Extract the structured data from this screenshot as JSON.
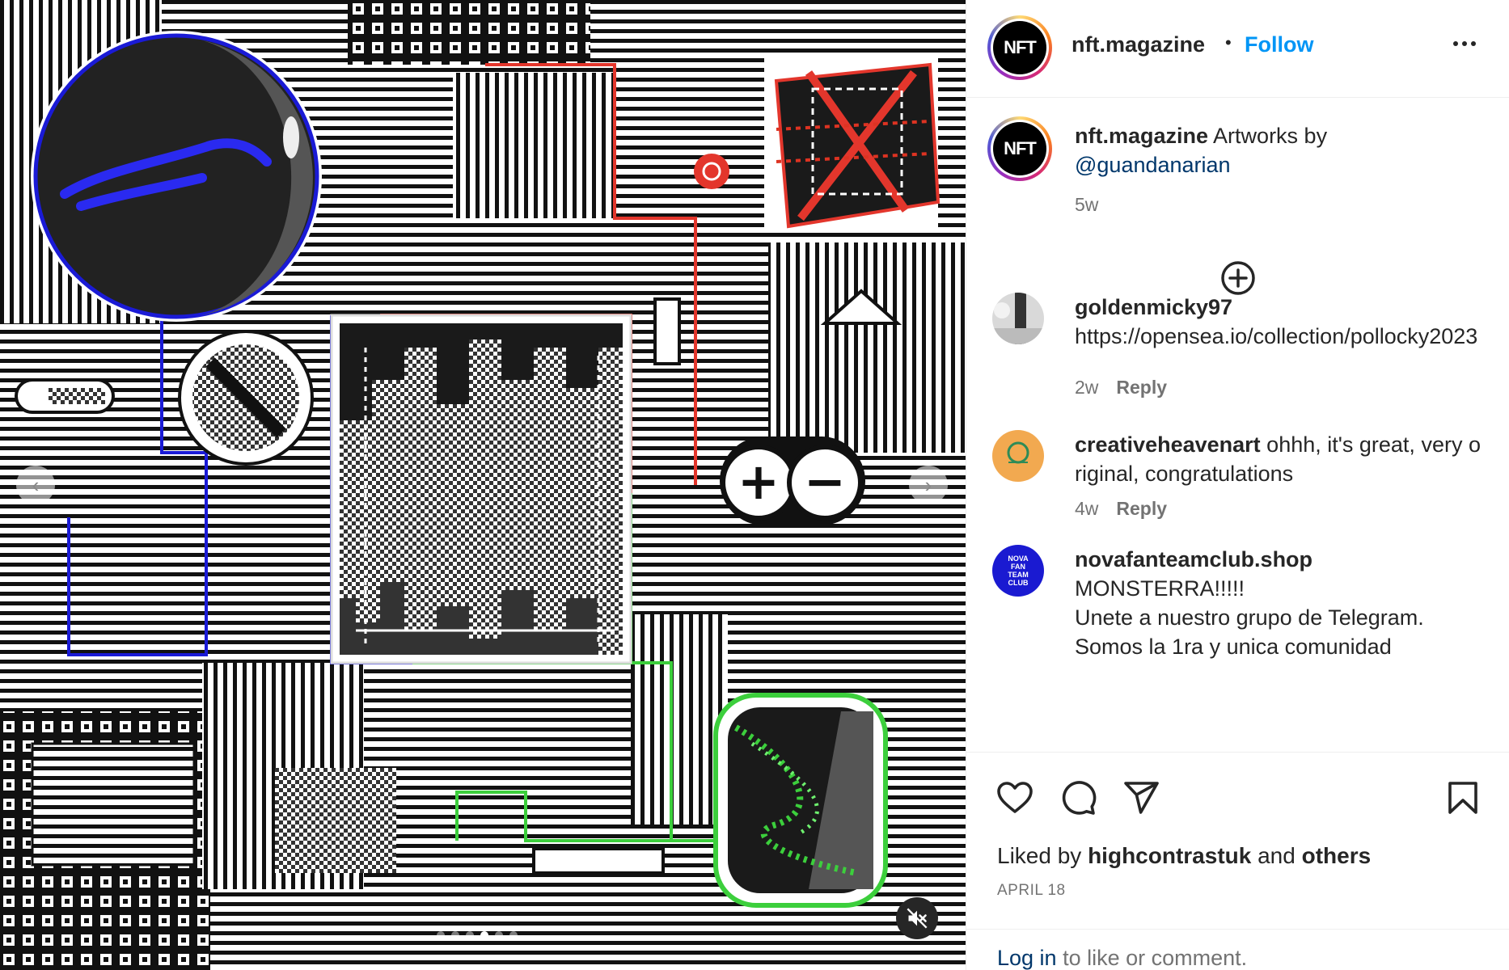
{
  "post": {
    "media": {
      "carousel_dots": 6,
      "active_dot": 3,
      "mute_icon": "speaker-muted-icon",
      "prev_icon": "chevron-left-icon",
      "next_icon": "chevron-right-icon",
      "plus_glyph": "+",
      "minus_glyph": "−"
    },
    "header": {
      "avatar_text": "NFT",
      "username": "nft.magazine",
      "bullet": "•",
      "follow_label": "Follow",
      "more_icon": "more-horizontal-icon"
    },
    "caption": {
      "avatar_text": "NFT",
      "username": "nft.magazine",
      "text": "Artworks by",
      "mention": "@guandanarian",
      "time": "5w"
    },
    "load_more_icon": "plus-circle-icon",
    "comments": [
      {
        "username": "goldenmicky97",
        "text": "https://opensea.io/collection/pollocky2023",
        "time": "2w",
        "reply_label": "Reply",
        "avatar_color": "#8a8a8a"
      },
      {
        "username": "creativeheavenart",
        "text": "ohhh, it's great, very original, congratulations",
        "time": "4w",
        "reply_label": "Reply",
        "avatar_color": "#f2a950"
      },
      {
        "username": "novafanteamclub.shop",
        "text": "MONSTERRA!!!!!",
        "text2": "Unete a nuestro grupo de Telegram.",
        "text3": "Somos la 1ra y unica comunidad",
        "avatar_color": "#1a1ad1",
        "avatar_text": "NOVA FAN TEAM CLUB"
      }
    ],
    "actions": {
      "like_icon": "heart-icon",
      "comment_icon": "comment-icon",
      "share_icon": "send-icon",
      "save_icon": "bookmark-icon"
    },
    "likes": {
      "prefix": "Liked by",
      "user": "highcontrastuk",
      "and": "and",
      "others": "others"
    },
    "date": "APRIL 18",
    "login": {
      "link": "Log in",
      "rest": "to like or comment."
    }
  },
  "colors": {
    "follow_blue": "#0095f6",
    "link_blue": "#00376b",
    "muted_text": "#737373",
    "art_blue": "#1a1ad6",
    "art_red": "#e3362c",
    "art_green": "#3ccf3c"
  }
}
